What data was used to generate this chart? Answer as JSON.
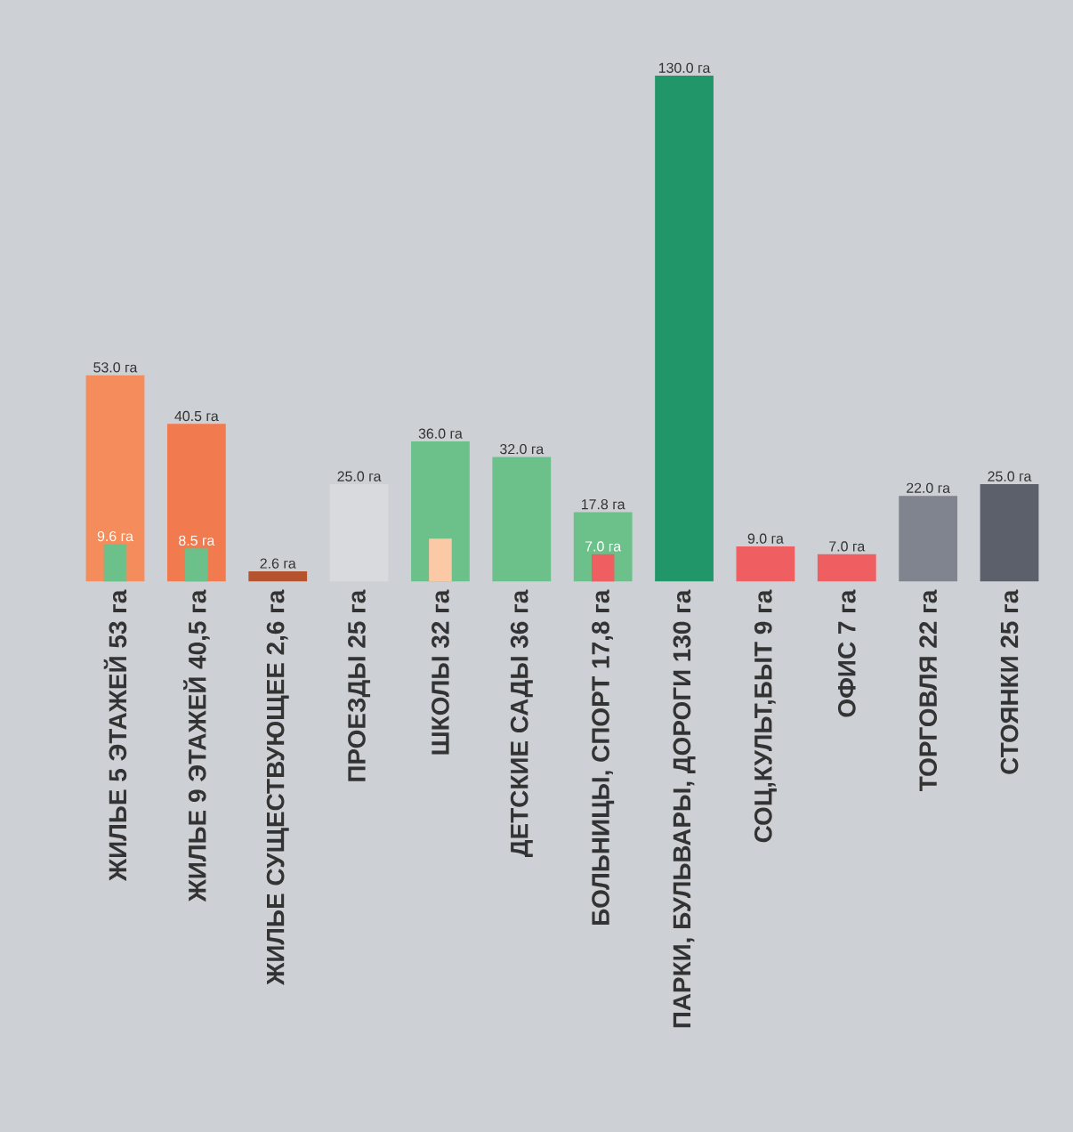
{
  "chart_data": {
    "type": "bar",
    "categories": [
      "ЖИЛЬЕ 5 ЭТАЖЕЙ 53 га",
      "ЖИЛЬЕ 9 ЭТАЖЕЙ 40,5 га",
      "ЖИЛЬЕ СУЩЕСТВУЮЩЕЕ 2,6 га",
      "ПРОЕЗДЫ 25 га",
      "ШКОЛЫ 32 га",
      "ДЕТСКИЕ САДЫ 36 га",
      "БОЛЬНИЦЫ, СПОРТ 17,8 га",
      "ПАРКИ, БУЛЬВАРЫ, ДОРОГИ 130 га",
      "СОЦ,КУЛЬТ,БЫТ 9 га",
      "ОФИС 7 га",
      "ТОРГОВЛЯ 22 га",
      "СТОЯНКИ 25 га"
    ],
    "series": [
      {
        "values": [
          53,
          40.5,
          2.6,
          25,
          36,
          32,
          17.8,
          130,
          9,
          7,
          22,
          25
        ],
        "colors": [
          "#f48c5c",
          "#f27a4f",
          "#b5532f",
          "#d9dadd",
          "#6cc18b",
          "#6cc18b",
          "#6cc18b",
          "#219669",
          "#ef5f62",
          "#ef5f62",
          "#80848e",
          "#5c606b"
        ],
        "value_labels": [
          "53.0 га",
          "40.5 га",
          "2.6 га",
          "25.0 га",
          "36.0 га",
          "32.0 га",
          "17.8 га",
          "130.0 га",
          "9.0 га",
          "7.0 га",
          "22.0 га",
          "25.0 га"
        ]
      },
      {
        "values": [
          9.6,
          8.5,
          null,
          null,
          11,
          null,
          7,
          null,
          null,
          null,
          null,
          null
        ],
        "colors": [
          "#6cc18b",
          "#6cc18b",
          null,
          null,
          "#fbc9a6",
          null,
          "#ef5f62",
          null,
          null,
          null,
          null,
          null
        ],
        "value_labels": [
          "9.6 га",
          "8.5 га",
          null,
          null,
          null,
          null,
          "7.0 га",
          null,
          null,
          null,
          null,
          null
        ]
      }
    ]
  }
}
